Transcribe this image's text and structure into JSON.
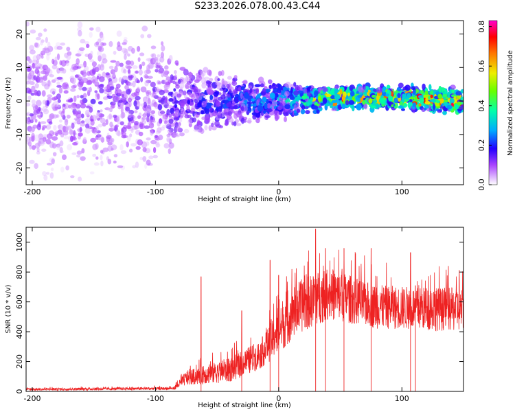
{
  "title": "S233.2026.078.00.43.C44",
  "chart_data": [
    {
      "type": "heatmap",
      "xlabel": "Height of straight line (km)",
      "ylabel": "Frequency (Hz)",
      "xlim": [
        -205,
        150
      ],
      "ylim": [
        -25,
        24
      ],
      "xticks": [
        -200,
        -100,
        0,
        100
      ],
      "xtick_labels": [
        "-200",
        "-100",
        "0",
        "100"
      ],
      "yticks": [
        -20,
        -10,
        0,
        10,
        20
      ],
      "ytick_labels": [
        "-20",
        "-10",
        "0",
        "10",
        "20"
      ],
      "colorbar": {
        "label": "Normalized spectral amplitude",
        "range": [
          0.0,
          0.83
        ],
        "ticks": [
          0.0,
          0.2,
          0.4,
          0.6,
          0.8
        ],
        "tick_labels": [
          "0.0",
          "0.2",
          "0.4",
          "0.6",
          "0.8"
        ]
      },
      "description_profile": [
        {
          "x": -205,
          "center": 0,
          "spread": 25,
          "amp": 0.12
        },
        {
          "x": -100,
          "center": 0,
          "spread": 22,
          "amp": 0.14
        },
        {
          "x": -80,
          "center": 0,
          "spread": 12,
          "amp": 0.18
        },
        {
          "x": -40,
          "center": 0,
          "spread": 9,
          "amp": 0.22
        },
        {
          "x": 0,
          "center": 0,
          "spread": 6,
          "amp": 0.3
        },
        {
          "x": 40,
          "center": 1,
          "spread": 4,
          "amp": 0.45
        },
        {
          "x": 100,
          "center": 1,
          "spread": 4,
          "amp": 0.55
        },
        {
          "x": 150,
          "center": 0,
          "spread": 4,
          "amp": 0.6
        }
      ]
    },
    {
      "type": "line",
      "xlabel": "Height of straight line (km)",
      "ylabel": "SNR (10 * v/v)",
      "xlim": [
        -205,
        150
      ],
      "ylim": [
        0,
        1100
      ],
      "xticks": [
        -200,
        -100,
        0,
        100
      ],
      "xtick_labels": [
        "-200",
        "-100",
        "0",
        "100"
      ],
      "yticks": [
        0,
        200,
        400,
        600,
        800,
        1000
      ],
      "ytick_labels": [
        "0",
        "200",
        "400",
        "600",
        "800",
        "1000"
      ],
      "color": "#ee2222",
      "envelope": [
        {
          "x": -205,
          "base": 5,
          "range": 25
        },
        {
          "x": -85,
          "base": 10,
          "range": 30
        },
        {
          "x": -75,
          "base": 40,
          "range": 150
        },
        {
          "x": -40,
          "base": 60,
          "range": 250
        },
        {
          "x": -15,
          "base": 150,
          "range": 300
        },
        {
          "x": 0,
          "base": 250,
          "range": 450
        },
        {
          "x": 15,
          "base": 380,
          "range": 550
        },
        {
          "x": 40,
          "base": 480,
          "range": 550
        },
        {
          "x": 80,
          "base": 420,
          "range": 450
        },
        {
          "x": 150,
          "base": 400,
          "range": 450
        }
      ],
      "peaks": [
        {
          "x": -63,
          "y": 770
        },
        {
          "x": -30,
          "y": 540
        },
        {
          "x": -7,
          "y": 880
        },
        {
          "x": 0,
          "y": 780
        },
        {
          "x": 30,
          "y": 1090
        },
        {
          "x": 38,
          "y": 960
        },
        {
          "x": 53,
          "y": 960
        },
        {
          "x": 75,
          "y": 960
        },
        {
          "x": 107,
          "y": 930
        },
        {
          "x": 111,
          "y": 710
        }
      ]
    }
  ]
}
